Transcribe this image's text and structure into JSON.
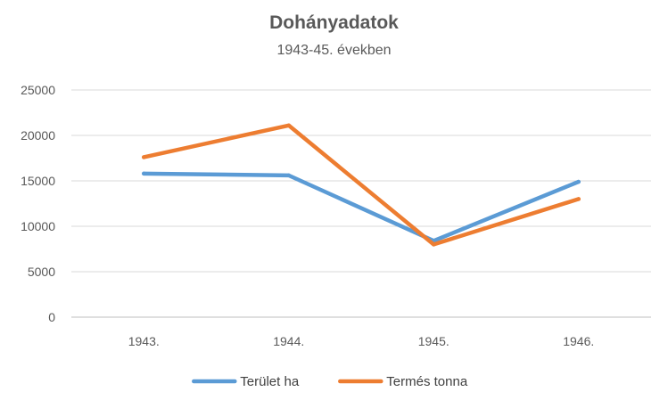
{
  "chart_data": {
    "type": "line",
    "title": "Dohányadatok",
    "subtitle": "1943-45. években",
    "categories": [
      "1943.",
      "1944.",
      "1945.",
      "1946."
    ],
    "ylim": [
      0,
      25000
    ],
    "yticks": [
      0,
      5000,
      10000,
      15000,
      20000,
      25000
    ],
    "grid": true,
    "legend_position": "bottom",
    "series": [
      {
        "name": "Terület ha",
        "color": "#5B9BD5",
        "values": [
          15800,
          15600,
          8400,
          14900
        ]
      },
      {
        "name": "Termés tonna",
        "color": "#ED7D31",
        "values": [
          17600,
          21100,
          8000,
          13000
        ]
      }
    ]
  }
}
